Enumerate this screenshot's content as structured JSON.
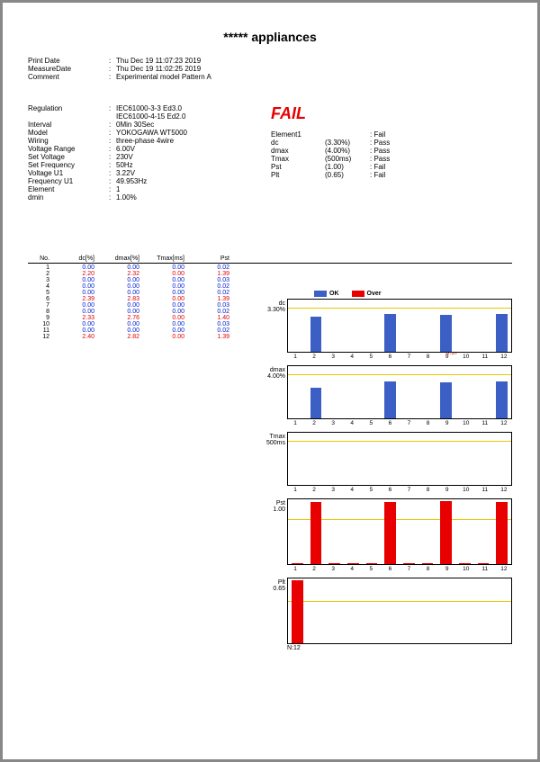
{
  "title": "***** appliances",
  "meta_top": [
    {
      "label": "Print Date",
      "value": "Thu Dec 19 11:07:23 2019"
    },
    {
      "label": "MeasureDate",
      "value": "Thu Dec 19 11:02:25 2019"
    },
    {
      "label": "Comment",
      "value": "Experimental model Pattern A"
    }
  ],
  "meta_left": [
    {
      "label": "Regulation",
      "value": "IEC61000-3-3    Ed3.0"
    },
    {
      "label": "",
      "value": "IEC61000-4-15  Ed2.0"
    },
    {
      "label": "Interval",
      "value": "0Min 30Sec"
    },
    {
      "label": "Model",
      "value": "YOKOGAWA WT5000"
    },
    {
      "label": "Wiring",
      "value": "three-phase 4wire"
    },
    {
      "label": "Voltage Range",
      "value": "6.00V"
    },
    {
      "label": "Set Voltage",
      "value": "230V"
    },
    {
      "label": "Set Frequency",
      "value": "50Hz"
    },
    {
      "label": "Voltage U1",
      "value": "3.22V"
    },
    {
      "label": "Frequency U1",
      "value": "49.953Hz"
    },
    {
      "label": "Element",
      "value": "1"
    },
    {
      "label": "dmin",
      "value": "1.00%"
    }
  ],
  "status": {
    "verdict": "FAIL",
    "rows": [
      {
        "l": "Element1",
        "m": "",
        "r": "Fail"
      },
      {
        "l": "dc",
        "m": "(3.30%)",
        "r": "Pass"
      },
      {
        "l": "dmax",
        "m": "(4.00%)",
        "r": "Pass"
      },
      {
        "l": "Tmax",
        "m": "(500ms)",
        "r": "Pass"
      },
      {
        "l": "Pst",
        "m": "(1.00)",
        "r": "Fail"
      },
      {
        "l": "Plt",
        "m": "(0.65)",
        "r": "Fail"
      }
    ]
  },
  "table": {
    "headers": [
      "No.",
      "dc[%]",
      "dmax[%]",
      "Tmax[ms]",
      "Pst"
    ],
    "rows": [
      {
        "no": 1,
        "dc": "0.00",
        "dmax": "0.00",
        "tmax": "0.00",
        "pst": "0.02",
        "hot": false
      },
      {
        "no": 2,
        "dc": "2.20",
        "dmax": "2.32",
        "tmax": "0.00",
        "pst": "1.39",
        "hot": true
      },
      {
        "no": 3,
        "dc": "0.00",
        "dmax": "0.00",
        "tmax": "0.00",
        "pst": "0.03",
        "hot": false
      },
      {
        "no": 4,
        "dc": "0.00",
        "dmax": "0.00",
        "tmax": "0.00",
        "pst": "0.02",
        "hot": false
      },
      {
        "no": 5,
        "dc": "0.00",
        "dmax": "0.00",
        "tmax": "0.00",
        "pst": "0.02",
        "hot": false
      },
      {
        "no": 6,
        "dc": "2.39",
        "dmax": "2.83",
        "tmax": "0.00",
        "pst": "1.39",
        "hot": true
      },
      {
        "no": 7,
        "dc": "0.00",
        "dmax": "0.00",
        "tmax": "0.00",
        "pst": "0.03",
        "hot": false
      },
      {
        "no": 8,
        "dc": "0.00",
        "dmax": "0.00",
        "tmax": "0.00",
        "pst": "0.02",
        "hot": false
      },
      {
        "no": 9,
        "dc": "2.33",
        "dmax": "2.76",
        "tmax": "0.00",
        "pst": "1.40",
        "hot": true
      },
      {
        "no": 10,
        "dc": "0.00",
        "dmax": "0.00",
        "tmax": "0.00",
        "pst": "0.03",
        "hot": false
      },
      {
        "no": 11,
        "dc": "0.00",
        "dmax": "0.00",
        "tmax": "0.00",
        "pst": "0.02",
        "hot": false
      },
      {
        "no": 12,
        "dc": "2.40",
        "dmax": "2.82",
        "tmax": "0.00",
        "pst": "1.39",
        "hot": true
      }
    ],
    "plt_label": "Plt",
    "plt_value": "0.97"
  },
  "legend": {
    "ok": "OK",
    "over": "Over",
    "ok_color": "#3b5fc4",
    "over_color": "#e80000"
  },
  "charts": [
    {
      "id": "dc",
      "label": "dc",
      "sub": "3.30%",
      "height": 58,
      "ymax": 3.3,
      "limit_pct": 15,
      "values": [
        0,
        2.2,
        0,
        0,
        0,
        2.39,
        0,
        0,
        2.33,
        0,
        0,
        2.4
      ],
      "color": "#3b5fc4",
      "show_x": true
    },
    {
      "id": "dmax",
      "label": "dmax",
      "sub": "4.00%",
      "height": 58,
      "ymax": 4.0,
      "limit_pct": 15,
      "values": [
        0,
        2.32,
        0,
        0,
        0,
        2.83,
        0,
        0,
        2.76,
        0,
        0,
        2.82
      ],
      "color": "#3b5fc4",
      "show_x": true
    },
    {
      "id": "tmax",
      "label": "Tmax",
      "sub": "500ms",
      "height": 58,
      "ymax": 500,
      "limit_pct": 15,
      "values": [
        0,
        0,
        0,
        0,
        0,
        0,
        0,
        0,
        0,
        0,
        0,
        0
      ],
      "color": "#3b5fc4",
      "show_x": true
    },
    {
      "id": "pst",
      "label": "Pst",
      "sub": "1.00",
      "height": 72,
      "ymax": 1.45,
      "limit_pct": 31,
      "values": [
        0.02,
        1.39,
        0.03,
        0.02,
        0.02,
        1.39,
        0.03,
        0.02,
        1.4,
        0.03,
        0.02,
        1.39
      ],
      "color": "#e80000",
      "show_x": true
    },
    {
      "id": "plt",
      "label": "Plt",
      "sub": "0.65",
      "height": 72,
      "ymax": 1.0,
      "limit_pct": 35,
      "values": [
        0.97
      ],
      "color": "#e80000",
      "show_x": false,
      "n_label": "N:12"
    }
  ],
  "xaxis": [
    1,
    2,
    3,
    4,
    5,
    6,
    7,
    8,
    9,
    10,
    11,
    12
  ]
}
